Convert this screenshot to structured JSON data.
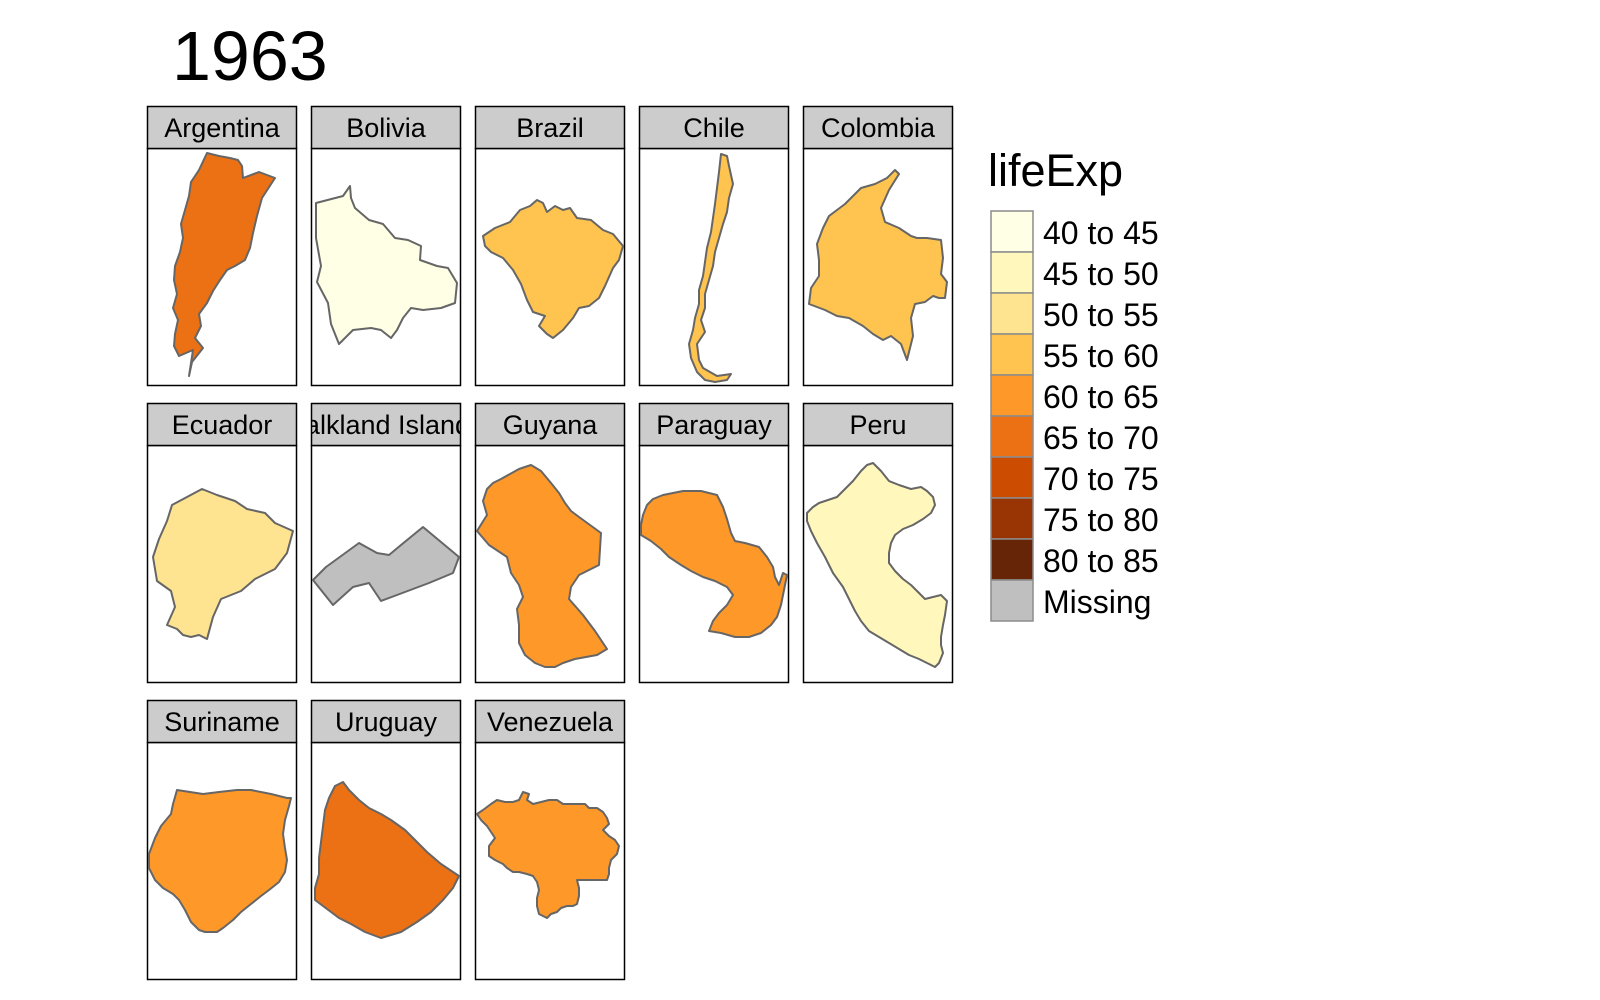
{
  "title": "1963",
  "chart_data": {
    "type": "choropleth-facets",
    "title": "1963",
    "variable": "lifeExp",
    "facets": [
      {
        "name": "Argentina",
        "class": "65 to 70",
        "shape": "argentina"
      },
      {
        "name": "Bolivia",
        "class": "40 to 45",
        "shape": "bolivia"
      },
      {
        "name": "Brazil",
        "class": "55 to 60",
        "shape": "brazil"
      },
      {
        "name": "Chile",
        "class": "55 to 60",
        "shape": "chile"
      },
      {
        "name": "Colombia",
        "class": "55 to 60",
        "shape": "colombia"
      },
      {
        "name": "Ecuador",
        "class": "50 to 55",
        "shape": "ecuador"
      },
      {
        "name": "Falkland Islands",
        "class": "Missing",
        "shape": "falklands"
      },
      {
        "name": "Guyana",
        "class": "60 to 65",
        "shape": "guyana"
      },
      {
        "name": "Paraguay",
        "class": "60 to 65",
        "shape": "paraguay"
      },
      {
        "name": "Peru",
        "class": "45 to 50",
        "shape": "peru"
      },
      {
        "name": "Suriname",
        "class": "60 to 65",
        "shape": "suriname"
      },
      {
        "name": "Uruguay",
        "class": "65 to 70",
        "shape": "uruguay"
      },
      {
        "name": "Venezuela",
        "class": "60 to 65",
        "shape": "venezuela"
      }
    ],
    "legend": {
      "title": "lifeExp",
      "position": "right",
      "classes": [
        {
          "label": "40 to 45",
          "color": "#FFFFE5"
        },
        {
          "label": "45 to 50",
          "color": "#FFF7BC"
        },
        {
          "label": "50 to 55",
          "color": "#FEE391"
        },
        {
          "label": "55 to 60",
          "color": "#FEC44F"
        },
        {
          "label": "60 to 65",
          "color": "#FE9929"
        },
        {
          "label": "65 to 70",
          "color": "#EC7014"
        },
        {
          "label": "70 to 75",
          "color": "#CC4C02"
        },
        {
          "label": "75 to 80",
          "color": "#993404"
        },
        {
          "label": "80 to 85",
          "color": "#662506"
        },
        {
          "label": "Missing",
          "color": "#BFBFBF"
        }
      ]
    },
    "colors": {
      "strip": "#CCCCCC",
      "border": "#000000",
      "outline": "#666666"
    }
  }
}
